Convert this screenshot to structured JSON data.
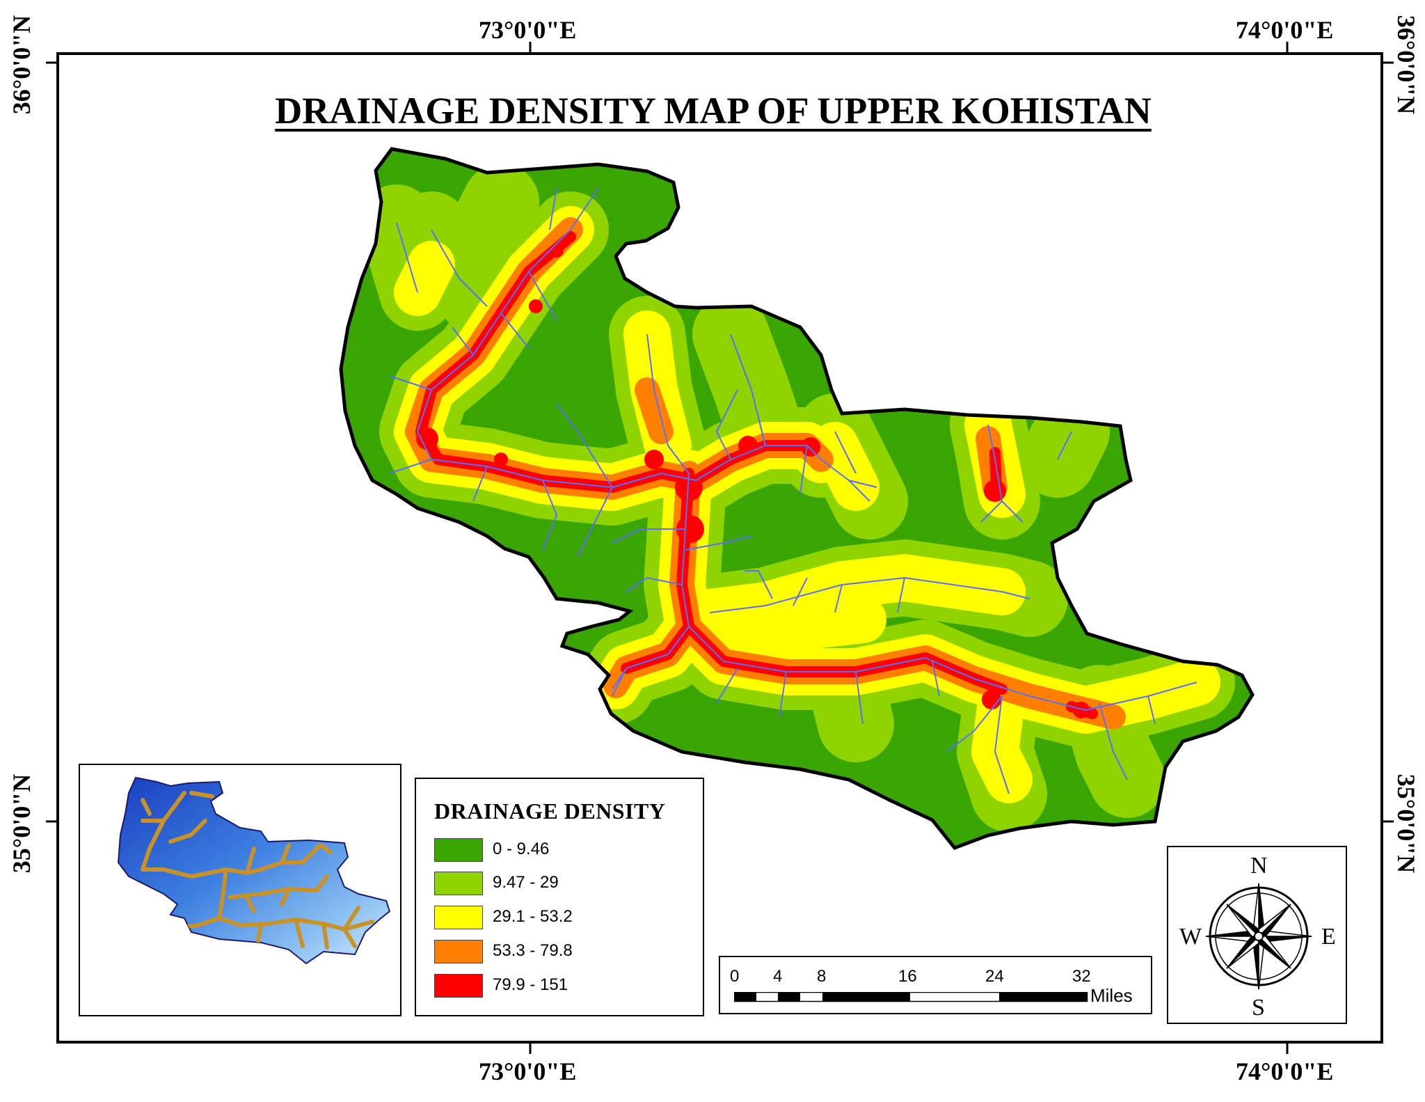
{
  "title": "DRAINAGE DENSITY MAP OF UPPER KOHISTAN",
  "graticule": {
    "lon_labels": [
      "73°0'0\"E",
      "74°0'0\"E"
    ],
    "lat_labels": [
      "36°0'0\"N",
      "35°0'0\"N"
    ]
  },
  "legend": {
    "title": "DRAINAGE DENSITY",
    "classes": [
      {
        "label": "0 - 9.46",
        "color": "#3aa500"
      },
      {
        "label": "9.47 - 29",
        "color": "#8fd400"
      },
      {
        "label": "29.1 - 53.2",
        "color": "#ffff00"
      },
      {
        "label": "53.3 - 79.8",
        "color": "#ff8000"
      },
      {
        "label": "79.9 - 151",
        "color": "#ff0000"
      }
    ]
  },
  "scale_bar": {
    "ticks": [
      "0",
      "4",
      "8",
      "16",
      "24",
      "32"
    ],
    "unit": "Miles"
  },
  "north_arrow": {
    "n": "N",
    "s": "S",
    "e": "E",
    "w": "W",
    "icon": "compass-rose-icon"
  },
  "inset": {
    "description_icon": "dem-stream-network-icon",
    "colors": {
      "dem_low": "#1a3fbf",
      "dem_high": "#d8ecff",
      "streams": "#c8922a"
    }
  },
  "colors": {
    "stream": "#5b6cff",
    "boundary": "#000000"
  }
}
